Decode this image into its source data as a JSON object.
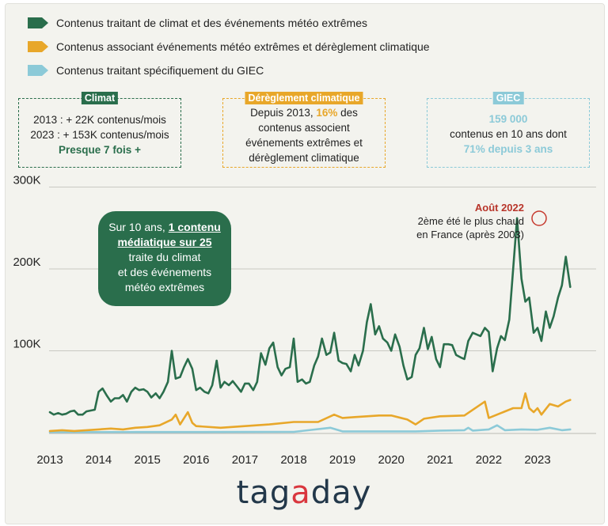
{
  "legend": [
    {
      "label": "Contenus traitant de climat et des événements météo extrêmes",
      "color": "#2a6e4c"
    },
    {
      "label": "Contenus associant événements météo extrêmes et dérèglement climatique",
      "color": "#e8a72a"
    },
    {
      "label": "Contenus traitant spécifiquement du GIEC",
      "color": "#8ccad8"
    }
  ],
  "callouts": {
    "climat": {
      "title": "Climat",
      "line1": "2013 : + 22K contenus/mois",
      "line2": "2023 : + 153K contenus/mois",
      "line3": "Presque 7 fois +"
    },
    "dereglement": {
      "title": "Dérèglement climatique",
      "line1_pre": "Depuis 2013, ",
      "line1_pct": "16%",
      "line1_post": " des",
      "line2": "contenus associent",
      "line3": "événements extrêmes et",
      "line4": "dérèglement climatique"
    },
    "giec": {
      "title": "GIEC",
      "line1": "159 000",
      "line2": "contenus en 10 ans dont",
      "line3": "71% depuis 3 ans"
    }
  },
  "bubble": {
    "line1_pre": "Sur 10 ans, ",
    "line1_u": "1 contenu",
    "line2_u": "médiatique  sur 25",
    "line3": "traite du climat",
    "line4": "et des événements",
    "line5": "météo extrêmes"
  },
  "annotation": {
    "title": "Août 2022",
    "line1": "2ème été le plus chaud",
    "line2": "en France (après 2003)"
  },
  "logo": {
    "part1": "tag",
    "accent": "a",
    "part2": "day"
  },
  "chart_data": {
    "type": "line",
    "y_ticks": [
      {
        "value": 100000,
        "label": "100K"
      },
      {
        "value": 200000,
        "label": "200K"
      },
      {
        "value": 300000,
        "label": "300K"
      }
    ],
    "x_ticks": [
      "2013",
      "2014",
      "2015",
      "2016",
      "2017",
      "2018",
      "2019",
      "2020",
      "2021",
      "2022",
      "2023"
    ],
    "ylim": [
      0,
      300000
    ],
    "xlim": [
      2013.0,
      2023.75
    ],
    "series": [
      {
        "name": "Contenus traitant de climat et des événements météo extrêmes",
        "color": "#2a6e4c",
        "points": [
          [
            2013.0,
            25000
          ],
          [
            2013.08,
            22000
          ],
          [
            2013.17,
            24000
          ],
          [
            2013.25,
            22000
          ],
          [
            2013.33,
            23000
          ],
          [
            2013.42,
            26000
          ],
          [
            2013.5,
            27000
          ],
          [
            2013.58,
            22000
          ],
          [
            2013.67,
            22000
          ],
          [
            2013.75,
            26000
          ],
          [
            2013.83,
            27000
          ],
          [
            2013.92,
            28000
          ],
          [
            2014.0,
            50000
          ],
          [
            2014.08,
            54000
          ],
          [
            2014.17,
            45000
          ],
          [
            2014.25,
            38000
          ],
          [
            2014.33,
            42000
          ],
          [
            2014.42,
            42000
          ],
          [
            2014.5,
            46000
          ],
          [
            2014.58,
            38000
          ],
          [
            2014.67,
            50000
          ],
          [
            2014.75,
            55000
          ],
          [
            2014.83,
            52000
          ],
          [
            2014.92,
            53000
          ],
          [
            2015.0,
            50000
          ],
          [
            2015.08,
            43000
          ],
          [
            2015.17,
            48000
          ],
          [
            2015.25,
            42000
          ],
          [
            2015.33,
            50000
          ],
          [
            2015.42,
            62000
          ],
          [
            2015.5,
            100000
          ],
          [
            2015.58,
            66000
          ],
          [
            2015.67,
            68000
          ],
          [
            2015.75,
            80000
          ],
          [
            2015.83,
            90000
          ],
          [
            2015.92,
            78000
          ],
          [
            2016.0,
            52000
          ],
          [
            2016.08,
            55000
          ],
          [
            2016.17,
            50000
          ],
          [
            2016.25,
            48000
          ],
          [
            2016.33,
            58000
          ],
          [
            2016.42,
            88000
          ],
          [
            2016.5,
            55000
          ],
          [
            2016.58,
            62000
          ],
          [
            2016.67,
            58000
          ],
          [
            2016.75,
            63000
          ],
          [
            2016.83,
            57000
          ],
          [
            2016.92,
            50000
          ],
          [
            2017.0,
            60000
          ],
          [
            2017.08,
            60000
          ],
          [
            2017.17,
            52000
          ],
          [
            2017.25,
            62000
          ],
          [
            2017.33,
            97000
          ],
          [
            2017.42,
            83000
          ],
          [
            2017.5,
            103000
          ],
          [
            2017.58,
            110000
          ],
          [
            2017.67,
            80000
          ],
          [
            2017.75,
            70000
          ],
          [
            2017.83,
            78000
          ],
          [
            2017.92,
            80000
          ],
          [
            2018.0,
            115000
          ],
          [
            2018.08,
            62000
          ],
          [
            2018.17,
            65000
          ],
          [
            2018.25,
            60000
          ],
          [
            2018.33,
            62000
          ],
          [
            2018.42,
            82000
          ],
          [
            2018.5,
            93000
          ],
          [
            2018.58,
            115000
          ],
          [
            2018.67,
            95000
          ],
          [
            2018.75,
            98000
          ],
          [
            2018.83,
            122000
          ],
          [
            2018.92,
            88000
          ],
          [
            2019.0,
            85000
          ],
          [
            2019.08,
            84000
          ],
          [
            2019.17,
            75000
          ],
          [
            2019.25,
            95000
          ],
          [
            2019.33,
            82000
          ],
          [
            2019.42,
            100000
          ],
          [
            2019.5,
            135000
          ],
          [
            2019.58,
            157000
          ],
          [
            2019.67,
            120000
          ],
          [
            2019.75,
            130000
          ],
          [
            2019.83,
            115000
          ],
          [
            2019.92,
            110000
          ],
          [
            2020.0,
            100000
          ],
          [
            2020.08,
            120000
          ],
          [
            2020.17,
            105000
          ],
          [
            2020.25,
            82000
          ],
          [
            2020.33,
            65000
          ],
          [
            2020.42,
            68000
          ],
          [
            2020.5,
            95000
          ],
          [
            2020.58,
            103000
          ],
          [
            2020.67,
            128000
          ],
          [
            2020.75,
            102000
          ],
          [
            2020.83,
            117000
          ],
          [
            2020.92,
            90000
          ],
          [
            2021.0,
            80000
          ],
          [
            2021.08,
            108000
          ],
          [
            2021.17,
            108000
          ],
          [
            2021.25,
            107000
          ],
          [
            2021.33,
            95000
          ],
          [
            2021.42,
            92000
          ],
          [
            2021.5,
            90000
          ],
          [
            2021.58,
            112000
          ],
          [
            2021.67,
            122000
          ],
          [
            2021.75,
            120000
          ],
          [
            2021.83,
            118000
          ],
          [
            2021.92,
            128000
          ],
          [
            2022.0,
            123000
          ],
          [
            2022.08,
            75000
          ],
          [
            2022.17,
            103000
          ],
          [
            2022.25,
            118000
          ],
          [
            2022.33,
            113000
          ],
          [
            2022.42,
            138000
          ],
          [
            2022.5,
            200000
          ],
          [
            2022.58,
            262000
          ],
          [
            2022.67,
            188000
          ],
          [
            2022.75,
            160000
          ],
          [
            2022.83,
            165000
          ],
          [
            2022.92,
            122000
          ],
          [
            2023.0,
            128000
          ],
          [
            2023.08,
            112000
          ],
          [
            2023.17,
            148000
          ],
          [
            2023.25,
            128000
          ],
          [
            2023.33,
            142000
          ],
          [
            2023.42,
            165000
          ],
          [
            2023.5,
            180000
          ],
          [
            2023.58,
            215000
          ],
          [
            2023.67,
            178000
          ]
        ]
      },
      {
        "name": "Contenus associant événements météo extrêmes et dérèglement climatique",
        "color": "#e8a72a",
        "points": [
          [
            2013.0,
            2000
          ],
          [
            2013.25,
            3000
          ],
          [
            2013.5,
            2000
          ],
          [
            2013.75,
            3000
          ],
          [
            2014.0,
            4000
          ],
          [
            2014.25,
            5000
          ],
          [
            2014.5,
            4000
          ],
          [
            2014.75,
            6000
          ],
          [
            2015.0,
            7000
          ],
          [
            2015.25,
            9000
          ],
          [
            2015.5,
            16000
          ],
          [
            2015.58,
            22000
          ],
          [
            2015.67,
            10000
          ],
          [
            2015.83,
            25000
          ],
          [
            2015.92,
            12000
          ],
          [
            2016.0,
            8000
          ],
          [
            2016.5,
            6000
          ],
          [
            2017.0,
            8000
          ],
          [
            2017.5,
            10000
          ],
          [
            2018.0,
            13000
          ],
          [
            2018.5,
            13000
          ],
          [
            2018.83,
            22000
          ],
          [
            2019.0,
            18000
          ],
          [
            2019.25,
            19000
          ],
          [
            2019.5,
            20000
          ],
          [
            2019.75,
            21000
          ],
          [
            2020.0,
            21000
          ],
          [
            2020.33,
            16000
          ],
          [
            2020.5,
            10000
          ],
          [
            2020.67,
            17000
          ],
          [
            2021.0,
            20000
          ],
          [
            2021.5,
            21000
          ],
          [
            2021.92,
            38000
          ],
          [
            2022.0,
            18000
          ],
          [
            2022.25,
            24000
          ],
          [
            2022.5,
            30000
          ],
          [
            2022.67,
            30000
          ],
          [
            2022.75,
            48000
          ],
          [
            2022.83,
            30000
          ],
          [
            2022.92,
            25000
          ],
          [
            2023.0,
            30000
          ],
          [
            2023.08,
            22000
          ],
          [
            2023.25,
            35000
          ],
          [
            2023.42,
            32000
          ],
          [
            2023.58,
            38000
          ],
          [
            2023.67,
            40000
          ]
        ]
      },
      {
        "name": "Contenus traitant spécifiquement du GIEC",
        "color": "#8ccad8",
        "points": [
          [
            2013.0,
            500
          ],
          [
            2014.0,
            700
          ],
          [
            2015.0,
            800
          ],
          [
            2016.0,
            800
          ],
          [
            2017.0,
            900
          ],
          [
            2018.0,
            1000
          ],
          [
            2018.75,
            6000
          ],
          [
            2019.0,
            1500
          ],
          [
            2019.5,
            1500
          ],
          [
            2020.0,
            1500
          ],
          [
            2020.5,
            1500
          ],
          [
            2021.0,
            2500
          ],
          [
            2021.5,
            3000
          ],
          [
            2021.58,
            6000
          ],
          [
            2021.67,
            2500
          ],
          [
            2022.0,
            4000
          ],
          [
            2022.17,
            9000
          ],
          [
            2022.33,
            3000
          ],
          [
            2022.67,
            4000
          ],
          [
            2023.0,
            3500
          ],
          [
            2023.25,
            6000
          ],
          [
            2023.5,
            3000
          ],
          [
            2023.67,
            4000
          ]
        ]
      }
    ]
  }
}
